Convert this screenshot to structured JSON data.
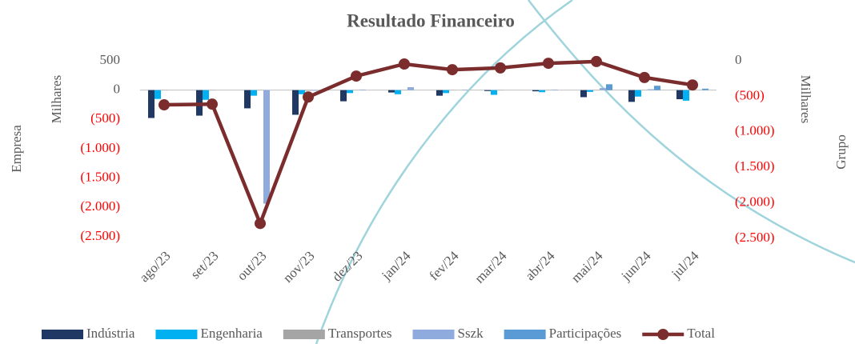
{
  "chart_data": {
    "type": "bar",
    "title": "Resultado Financeiro",
    "y_label": "Empresa",
    "y_unit_label": "Milhares",
    "y2_label": "Grupo",
    "y2_unit_label": "Milhares",
    "categories": [
      "ago/23",
      "set/23",
      "out/23",
      "nov/23",
      "dez/23",
      "jan/24",
      "fev/24",
      "mar/24",
      "abr/24",
      "mai/24",
      "jun/24",
      "jul/24"
    ],
    "ylim": [
      -2500,
      500
    ],
    "yticks": [
      {
        "value": -2500,
        "label": "(2.500)"
      },
      {
        "value": -2000,
        "label": "(2.000)"
      },
      {
        "value": -1500,
        "label": "(1.500)"
      },
      {
        "value": -1000,
        "label": "(1.000)"
      },
      {
        "value": -500,
        "label": "(500)"
      },
      0,
      500
    ],
    "y2lim": [
      -2500,
      0
    ],
    "y2ticks": [
      {
        "value": -2500,
        "label": "(2.500)"
      },
      {
        "value": -2000,
        "label": "(2.000)"
      },
      {
        "value": -1500,
        "label": "(1.500)"
      },
      {
        "value": -1000,
        "label": "(1.000)"
      },
      {
        "value": -500,
        "label": "(500)"
      },
      0
    ],
    "negative_tick_color": "#ff0000",
    "series": [
      {
        "name": "Indústria",
        "color": "#1f3864",
        "values": [
          -475,
          -435,
          -310,
          -420,
          -190,
          -40,
          -95,
          -15,
          -20,
          -120,
          -200,
          -155
        ]
      },
      {
        "name": "Engenharia",
        "color": "#00b0f0",
        "values": [
          -150,
          -165,
          -95,
          -70,
          -50,
          -70,
          -50,
          -80,
          -35,
          -30,
          -110,
          -180
        ]
      },
      {
        "name": "Transportes",
        "color": "#a5a5a5",
        "values": [
          -5,
          -5,
          -5,
          -10,
          -5,
          -5,
          -5,
          -5,
          -5,
          -5,
          -5,
          -5
        ]
      },
      {
        "name": "Sszk",
        "color": "#8faadc",
        "values": [
          0,
          0,
          -1935,
          -10,
          10,
          50,
          0,
          0,
          10,
          35,
          15,
          0
        ]
      },
      {
        "name": "Participações",
        "color": "#5b9bd5",
        "values": [
          0,
          0,
          0,
          0,
          0,
          0,
          5,
          0,
          0,
          100,
          75,
          25
        ]
      },
      {
        "name": "Total",
        "color": "#7b2c2c",
        "type": "line",
        "axis": "y2",
        "values": [
          -620,
          -610,
          -2290,
          -510,
          -215,
          -45,
          -125,
          -100,
          -35,
          -10,
          -235,
          -340
        ]
      }
    ]
  }
}
